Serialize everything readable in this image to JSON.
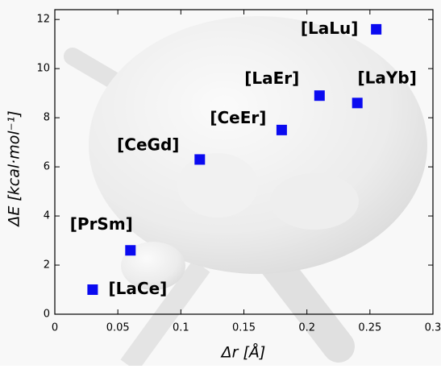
{
  "chart_data": {
    "type": "scatter",
    "xlabel": "Δr [Å]",
    "ylabel": "ΔE [kcal·mol⁻¹]",
    "xlim": [
      0,
      0.3
    ],
    "ylim": [
      0,
      12.4
    ],
    "xticks": [
      0,
      0.05,
      0.1,
      0.15,
      0.2,
      0.25,
      0.3
    ],
    "yticks": [
      0,
      2,
      4,
      6,
      8,
      10,
      12
    ],
    "color": "#0a0af0",
    "marker": "square",
    "labels": [
      "[LaCe]",
      "[PrSm]",
      "[CeGd]",
      "[CeEr]",
      "[LaEr]",
      "[LaYb]",
      "[LaLu]"
    ],
    "x": [
      0.03,
      0.06,
      0.115,
      0.18,
      0.21,
      0.24,
      0.255
    ],
    "values": [
      1.0,
      2.6,
      6.3,
      7.5,
      8.9,
      8.6,
      11.6
    ]
  }
}
